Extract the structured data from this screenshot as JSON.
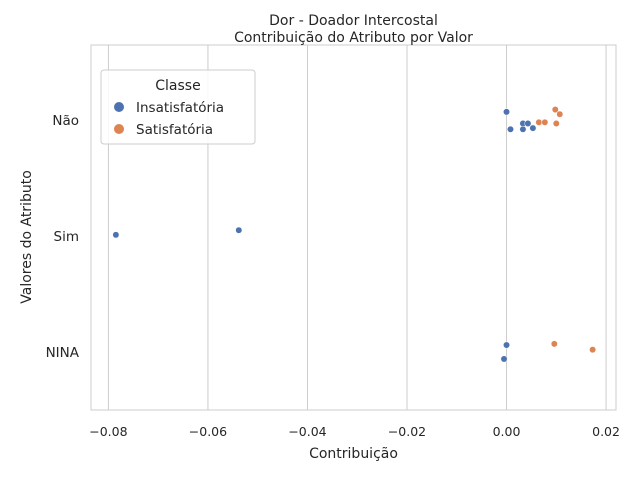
{
  "chart_data": {
    "type": "scatter",
    "title": "Dor - Doador Intercostal",
    "subtitle": "Contribuição do Atributo por Valor",
    "xlabel": "Contribuição",
    "ylabel": "Valores do Atributo",
    "xlim": [
      -0.0835,
      0.022
    ],
    "categories": [
      "Não",
      "Sim",
      "NINA"
    ],
    "x_ticks": [
      -0.08,
      -0.06,
      -0.04,
      -0.02,
      0.0,
      0.02
    ],
    "x_tick_labels": [
      "−0.08",
      "−0.06",
      "−0.04",
      "−0.02",
      "0.00",
      "0.02"
    ],
    "grid": "vertical",
    "legend": {
      "title": "Classe",
      "placement": "upper-left",
      "entries": [
        "Insatisfatória",
        "Satisfatória"
      ]
    },
    "series": [
      {
        "name": "Insatisfatória",
        "color": "#4c72b0",
        "points": [
          {
            "category": "Não",
            "x": 0.0,
            "jitter": -0.07
          },
          {
            "category": "Não",
            "x": 0.0033,
            "jitter": 0.03
          },
          {
            "category": "Não",
            "x": 0.0043,
            "jitter": 0.03
          },
          {
            "category": "Não",
            "x": 0.0053,
            "jitter": 0.07
          },
          {
            "category": "Não",
            "x": 0.0033,
            "jitter": 0.08
          },
          {
            "category": "Não",
            "x": 0.0008,
            "jitter": 0.08
          },
          {
            "category": "Sim",
            "x": -0.0785,
            "jitter": -0.01
          },
          {
            "category": "Sim",
            "x": -0.0538,
            "jitter": -0.05
          },
          {
            "category": "NINA",
            "x": 0.0,
            "jitter": -0.06
          },
          {
            "category": "NINA",
            "x": -0.0005,
            "jitter": 0.06
          }
        ]
      },
      {
        "name": "Satisfatória",
        "color": "#dd8452",
        "points": [
          {
            "category": "Não",
            "x": 0.0098,
            "jitter": -0.09
          },
          {
            "category": "Não",
            "x": 0.0107,
            "jitter": -0.05
          },
          {
            "category": "Não",
            "x": 0.0065,
            "jitter": 0.02
          },
          {
            "category": "Não",
            "x": 0.0077,
            "jitter": 0.02
          },
          {
            "category": "Não",
            "x": 0.01,
            "jitter": 0.03
          },
          {
            "category": "NINA",
            "x": 0.0096,
            "jitter": -0.07
          },
          {
            "category": "NINA",
            "x": 0.0173,
            "jitter": -0.02
          }
        ]
      }
    ]
  }
}
